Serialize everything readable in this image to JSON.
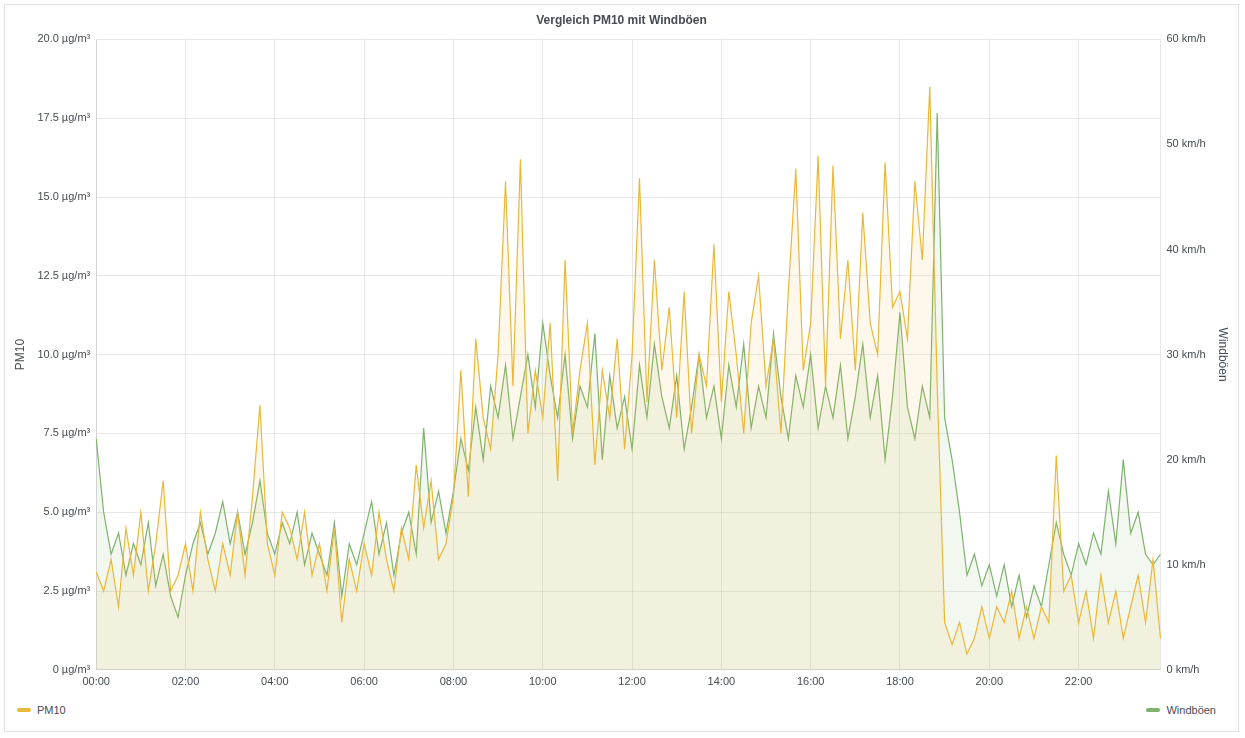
{
  "chart_data": {
    "type": "line",
    "title": "Vergleich PM10 mit Windböen",
    "y_label": "PM10",
    "y2_label": "Windböen",
    "categories": [
      "00:00",
      null,
      null,
      null,
      null,
      null,
      null,
      null,
      null,
      null,
      null,
      null,
      "02:00",
      null,
      null,
      null,
      null,
      null,
      null,
      null,
      null,
      null,
      null,
      null,
      "04:00",
      null,
      null,
      null,
      null,
      null,
      null,
      null,
      null,
      null,
      null,
      null,
      "06:00",
      null,
      null,
      null,
      null,
      null,
      null,
      null,
      null,
      null,
      null,
      null,
      "08:00",
      null,
      null,
      null,
      null,
      null,
      null,
      null,
      null,
      null,
      null,
      null,
      "10:00",
      null,
      null,
      null,
      null,
      null,
      null,
      null,
      null,
      null,
      null,
      null,
      "12:00",
      null,
      null,
      null,
      null,
      null,
      null,
      null,
      null,
      null,
      null,
      null,
      "14:00",
      null,
      null,
      null,
      null,
      null,
      null,
      null,
      null,
      null,
      null,
      null,
      "16:00",
      null,
      null,
      null,
      null,
      null,
      null,
      null,
      null,
      null,
      null,
      null,
      "18:00",
      null,
      null,
      null,
      null,
      null,
      null,
      null,
      null,
      null,
      null,
      null,
      "20:00",
      null,
      null,
      null,
      null,
      null,
      null,
      null,
      null,
      null,
      null,
      null,
      "22:00",
      null,
      null,
      null,
      null,
      null,
      null,
      null,
      null,
      null,
      null,
      null
    ],
    "series": [
      {
        "name": "PM10",
        "color": "#EAB839",
        "axis": "y",
        "values": [
          3.1,
          2.5,
          3.5,
          2.0,
          4.5,
          3.0,
          5.0,
          2.5,
          4.0,
          6.0,
          2.5,
          3.0,
          4.0,
          2.5,
          5.0,
          3.5,
          2.5,
          4.0,
          3.0,
          5.0,
          3.0,
          5.5,
          8.4,
          4.0,
          3.0,
          5.0,
          4.5,
          3.5,
          5.0,
          3.0,
          4.0,
          2.5,
          4.5,
          1.5,
          3.5,
          2.5,
          4.0,
          3.0,
          5.0,
          3.5,
          2.5,
          4.5,
          3.5,
          6.5,
          4.5,
          6.0,
          3.5,
          4.0,
          5.5,
          9.5,
          5.5,
          10.5,
          8.0,
          7.0,
          10.0,
          15.5,
          9.0,
          16.2,
          7.5,
          9.5,
          8.0,
          11.0,
          6.0,
          13.0,
          7.5,
          9.5,
          11.0,
          6.5,
          9.5,
          8.0,
          10.5,
          7.0,
          10.0,
          15.6,
          8.5,
          13.0,
          9.5,
          11.5,
          8.0,
          12.0,
          7.5,
          10.0,
          9.0,
          13.5,
          8.5,
          12.0,
          10.0,
          7.5,
          11.0,
          12.5,
          9.0,
          10.5,
          7.5,
          12.0,
          15.9,
          9.5,
          11.0,
          16.3,
          9.0,
          16.0,
          10.5,
          13.0,
          9.5,
          14.5,
          11.0,
          10.0,
          16.1,
          11.5,
          12.0,
          10.5,
          15.5,
          13.0,
          18.5,
          9.0,
          1.5,
          0.8,
          1.5,
          0.5,
          1.0,
          2.0,
          1.0,
          2.0,
          1.5,
          2.5,
          1.0,
          2.0,
          1.0,
          2.0,
          1.5,
          6.8,
          2.5,
          3.0,
          1.5,
          2.5,
          1.0,
          3.0,
          1.5,
          2.5,
          1.0,
          2.0,
          3.0,
          1.5,
          3.5,
          1.0
        ]
      },
      {
        "name": "Windböen",
        "color": "#7EB26D",
        "axis": "y2",
        "values": [
          22,
          15,
          11,
          13,
          9,
          12,
          10,
          14,
          8,
          11,
          7,
          5,
          9,
          12,
          14,
          11,
          13,
          16,
          12,
          15,
          11,
          14,
          18,
          13,
          11,
          14,
          12,
          15,
          10,
          13,
          11,
          9,
          14,
          7,
          12,
          10,
          13,
          16,
          11,
          14,
          9,
          13,
          15,
          11,
          23,
          14,
          17,
          13,
          17,
          22,
          19,
          25,
          20,
          27,
          24,
          29,
          22,
          26,
          30,
          25,
          33,
          28,
          24,
          30,
          22,
          27,
          25,
          32,
          20,
          28,
          23,
          26,
          21,
          29,
          24,
          31,
          26,
          23,
          28,
          21,
          25,
          30,
          24,
          27,
          22,
          29,
          25,
          31,
          23,
          27,
          24,
          32,
          26,
          22,
          28,
          25,
          30,
          23,
          27,
          24,
          29,
          22,
          26,
          31,
          24,
          28,
          20,
          26,
          34,
          25,
          22,
          27,
          24,
          53,
          24,
          20,
          15,
          9,
          11,
          8,
          10,
          7,
          10,
          6,
          9,
          5,
          8,
          6,
          10,
          14,
          11,
          9,
          12,
          10,
          13,
          11,
          17,
          12,
          20,
          13,
          15,
          11,
          10,
          11
        ]
      }
    ],
    "ylim": [
      0,
      20
    ],
    "yticks": [
      {
        "value": 0,
        "label": "0 µg/m³"
      },
      {
        "value": 2.5,
        "label": "2.5 µg/m³"
      },
      {
        "value": 5,
        "label": "5.0 µg/m³"
      },
      {
        "value": 7.5,
        "label": "7.5 µg/m³"
      },
      {
        "value": 10,
        "label": "10.0 µg/m³"
      },
      {
        "value": 12.5,
        "label": "12.5 µg/m³"
      },
      {
        "value": 15,
        "label": "15.0 µg/m³"
      },
      {
        "value": 17.5,
        "label": "17.5 µg/m³"
      },
      {
        "value": 20,
        "label": "20.0 µg/m³"
      }
    ],
    "y2lim": [
      0,
      60
    ],
    "y2ticks": [
      {
        "value": 0,
        "label": "0 km/h"
      },
      {
        "value": 10,
        "label": "10 km/h"
      },
      {
        "value": 20,
        "label": "20 km/h"
      },
      {
        "value": 30,
        "label": "30 km/h"
      },
      {
        "value": 40,
        "label": "40 km/h"
      },
      {
        "value": 50,
        "label": "50 km/h"
      },
      {
        "value": 60,
        "label": "60 km/h"
      }
    ],
    "grid": true,
    "legend": "bottom"
  }
}
